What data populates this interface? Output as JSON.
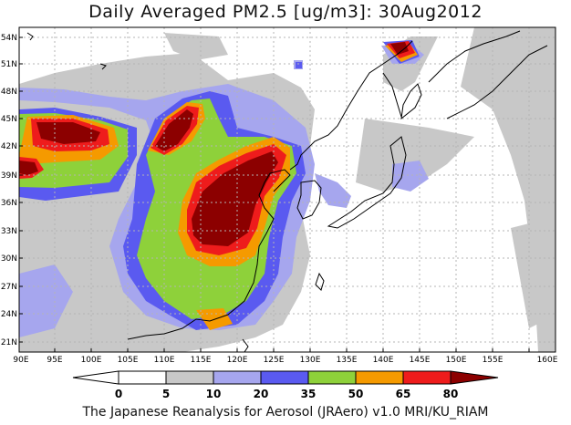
{
  "title": "Daily Averaged PM2.5 [ug/m3]: 30Aug2012",
  "footer": "The Japanese Reanalysis for Aerosol (JRAero) v1.0 MRI/KU_RIAM",
  "axes": {
    "lat_labels": [
      "54N",
      "51N",
      "48N",
      "45N",
      "42N",
      "39N",
      "36N",
      "33N",
      "30N",
      "27N",
      "24N",
      "21N"
    ],
    "lon_labels": [
      "90E",
      "95E",
      "100E",
      "105E",
      "110E",
      "115E",
      "120E",
      "125E",
      "130E",
      "135E",
      "140E",
      "145E",
      "150E",
      "155E",
      "160E"
    ]
  },
  "colorbar": {
    "labels": [
      "0",
      "5",
      "10",
      "20",
      "35",
      "50",
      "65",
      "80"
    ],
    "colors": [
      "#ffffff",
      "#c8c8c8",
      "#a6a6ee",
      "#5a5af0",
      "#8ed13a",
      "#f59a00",
      "#ee1c1c",
      "#8c0000"
    ]
  },
  "colors": {
    "land_outline": "#000000",
    "grid": "#b4b4b4"
  }
}
